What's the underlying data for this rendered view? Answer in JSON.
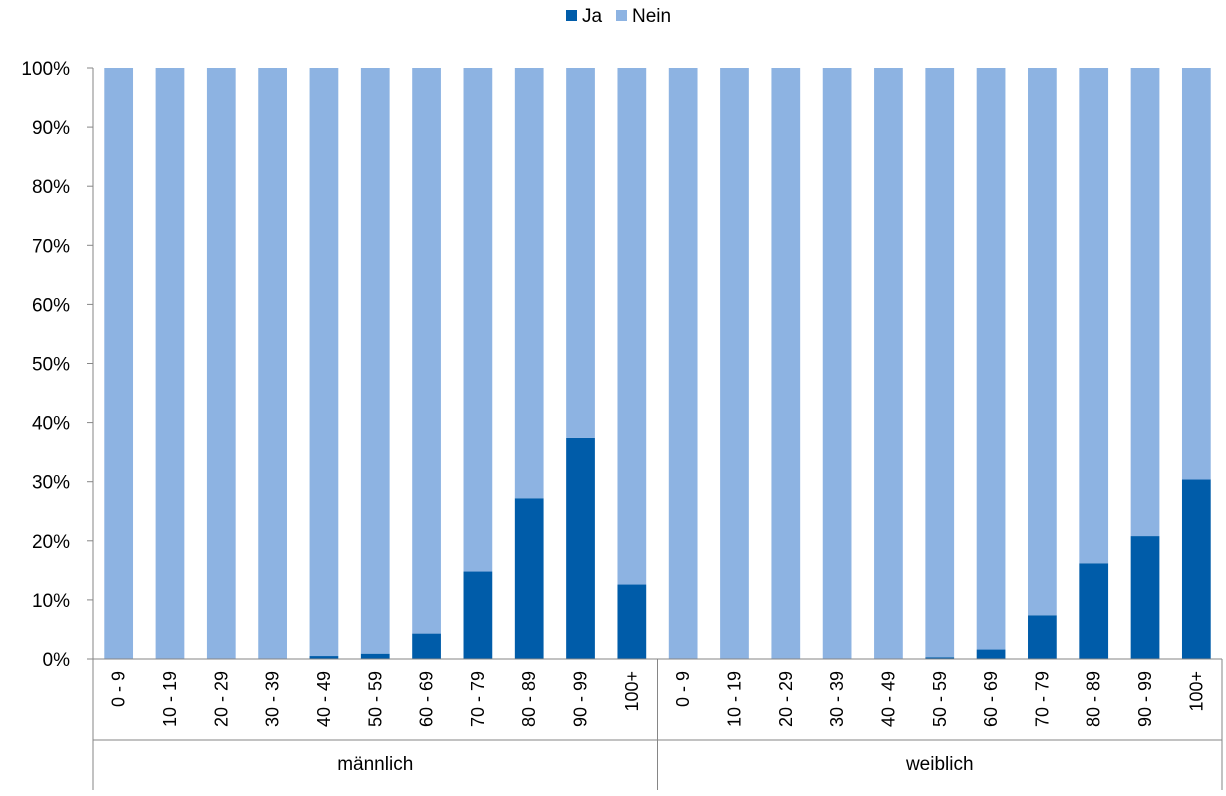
{
  "chart_data": {
    "type": "bar",
    "stacked": true,
    "percent": true,
    "title": "",
    "xlabel": "",
    "ylabel": "",
    "ylim": [
      0,
      100
    ],
    "y_ticks": [
      "0%",
      "10%",
      "20%",
      "30%",
      "40%",
      "50%",
      "60%",
      "70%",
      "80%",
      "90%",
      "100%"
    ],
    "legend_position": "top",
    "groups": [
      {
        "label": "männlich",
        "categories": [
          "0 - 9",
          "10 - 19",
          "20 - 29",
          "30 - 39",
          "40 - 49",
          "50 - 59",
          "60 - 69",
          "70 - 79",
          "80 - 89",
          "90 - 99",
          "100+"
        ]
      },
      {
        "label": "weiblich",
        "categories": [
          "0 - 9",
          "10 - 19",
          "20 - 29",
          "30 - 39",
          "40 - 49",
          "50 - 59",
          "60 - 69",
          "70 - 79",
          "80 - 89",
          "90 - 99",
          "100+"
        ]
      }
    ],
    "series": [
      {
        "name": "Ja",
        "color": "#005CA9",
        "values": [
          0,
          0,
          0,
          0,
          0.5,
          0.9,
          4.3,
          14.8,
          27.2,
          37.4,
          12.6,
          0,
          0,
          0,
          0,
          0,
          0.3,
          1.6,
          7.4,
          16.2,
          20.8,
          30.4
        ]
      },
      {
        "name": "Nein",
        "color": "#8DB3E2",
        "values": [
          100,
          100,
          100,
          100,
          99.5,
          99.1,
          95.7,
          85.2,
          72.8,
          62.6,
          87.4,
          100,
          100,
          100,
          100,
          100,
          99.7,
          98.4,
          92.6,
          83.8,
          79.2,
          69.6
        ]
      }
    ]
  }
}
